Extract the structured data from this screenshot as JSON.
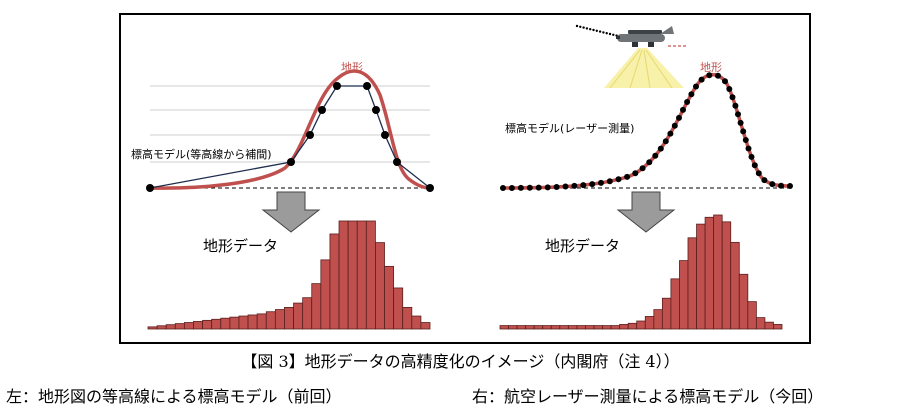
{
  "left_panel": {
    "terrain_label": "地形",
    "model_label": "標高モデル(等高線から補間)",
    "data_label": "地形データ",
    "histogram_values": [
      2,
      3,
      4,
      5,
      6,
      7,
      8,
      9,
      10,
      11,
      12,
      13,
      14,
      16,
      18,
      20,
      24,
      29,
      42,
      64,
      88,
      100,
      100,
      100,
      100,
      80,
      58,
      38,
      20,
      12,
      6
    ]
  },
  "right_panel": {
    "terrain_label": "地形",
    "model_label": "標高モデル(レーザー測量)",
    "data_label": "地形データ",
    "histogram_values": [
      3,
      3,
      3,
      3,
      3,
      3,
      3,
      3,
      3,
      3,
      3,
      3,
      3,
      3,
      4,
      5,
      7,
      11,
      17,
      27,
      44,
      60,
      80,
      92,
      98,
      100,
      94,
      76,
      48,
      24,
      10,
      6,
      4
    ]
  },
  "colors": {
    "terrain_curve": "#c0504d",
    "bar_fill": "#c0504d",
    "bar_stroke": "#5a1f1d",
    "model_line": "#1f2d4d",
    "arrow_fill": "#9b9b9b",
    "beam_fill": "#f7f0a0",
    "frame": "#000000"
  },
  "caption": {
    "title": "【図 3】地形データの高精度化のイメージ（内閣府（注 4））",
    "left": "左：地形図の等高線による標高モデル（前回）",
    "right": "右：航空レーザー測量による標高モデル（今回）"
  }
}
